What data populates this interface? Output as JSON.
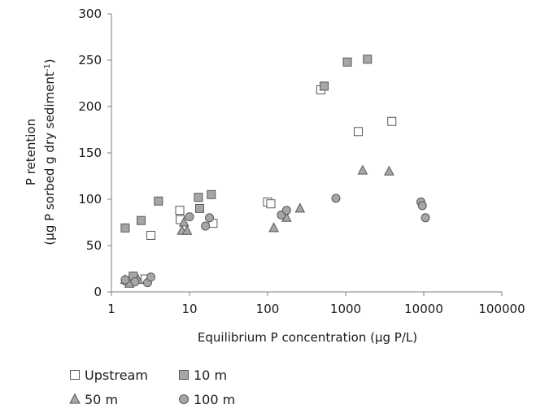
{
  "chart_data": {
    "type": "scatter",
    "title": "",
    "xlabel": "Equilibrium P concentration (µg P/L)",
    "ylabel_line1": "P retention",
    "ylabel_line2": "(µg P sorbed g dry sediment",
    "ylabel_sup": "-1",
    "ylabel_close": ")",
    "x_scale": "log",
    "xlim": [
      1,
      100000
    ],
    "ylim": [
      0,
      300
    ],
    "x_ticks": [
      1,
      10,
      100,
      1000,
      10000,
      100000
    ],
    "x_tick_labels": [
      "1",
      "10",
      "100",
      "1000",
      "10000",
      "100000"
    ],
    "y_ticks": [
      0,
      50,
      100,
      150,
      200,
      250,
      300
    ],
    "y_tick_labels": [
      "0",
      "50",
      "100",
      "150",
      "200",
      "250",
      "300"
    ],
    "grid": false,
    "legend_position": "bottom-left",
    "series": [
      {
        "name": "Upstream",
        "marker": "square",
        "fill": "#ffffff",
        "points": [
          [
            1.6,
            12
          ],
          [
            2.7,
            14
          ],
          [
            3.2,
            61
          ],
          [
            7.5,
            88
          ],
          [
            7.6,
            78
          ],
          [
            20,
            74
          ],
          [
            100,
            97
          ],
          [
            110,
            95
          ],
          [
            480,
            218
          ],
          [
            1450,
            173
          ],
          [
            3900,
            184
          ]
        ]
      },
      {
        "name": "10 m",
        "marker": "square",
        "fill": "#a6a6a6",
        "points": [
          [
            1.5,
            69
          ],
          [
            1.9,
            17
          ],
          [
            2.4,
            77
          ],
          [
            4,
            98
          ],
          [
            13,
            102
          ],
          [
            13.5,
            90
          ],
          [
            19,
            105
          ],
          [
            530,
            222
          ],
          [
            1050,
            248
          ],
          [
            1900,
            251
          ]
        ]
      },
      {
        "name": "50 m",
        "marker": "triangle",
        "fill": "#a6a6a6",
        "points": [
          [
            1.5,
            13
          ],
          [
            1.7,
            9
          ],
          [
            2.2,
            13
          ],
          [
            8,
            66
          ],
          [
            8.5,
            75
          ],
          [
            9.3,
            66
          ],
          [
            120,
            69
          ],
          [
            175,
            80
          ],
          [
            260,
            90
          ],
          [
            1650,
            131
          ],
          [
            3600,
            130
          ]
        ]
      },
      {
        "name": "100 m",
        "marker": "circle",
        "fill": "#a6a6a6",
        "points": [
          [
            1.5,
            13
          ],
          [
            2.0,
            11
          ],
          [
            2.9,
            10
          ],
          [
            3.2,
            16
          ],
          [
            10,
            81
          ],
          [
            16,
            71
          ],
          [
            18,
            80
          ],
          [
            150,
            83
          ],
          [
            175,
            88
          ],
          [
            750,
            101
          ],
          [
            9200,
            97
          ],
          [
            9600,
            93
          ],
          [
            10500,
            80
          ]
        ]
      }
    ]
  }
}
